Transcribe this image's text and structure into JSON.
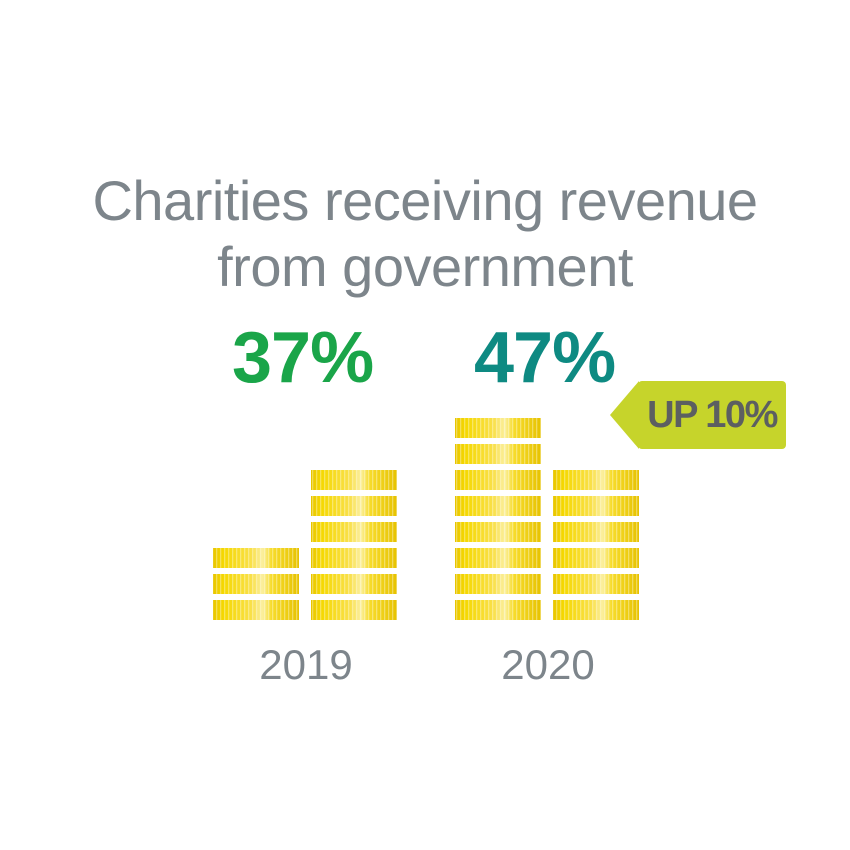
{
  "title": {
    "line1": "Charities receiving revenue",
    "line2": "from government"
  },
  "badge": {
    "label": "UP 10%"
  },
  "colors": {
    "title": "#7d858b",
    "pct_2019": "#1aa549",
    "pct_2020": "#0e8a82",
    "badge": "#c6d42b",
    "coin": "#f3d60a"
  },
  "chart_data": {
    "type": "bar",
    "title": "Charities receiving revenue from government",
    "categories": [
      "2019",
      "2020"
    ],
    "values": [
      37,
      47
    ],
    "value_labels": [
      "37%",
      "47%"
    ],
    "unit": "%",
    "annotation": "UP 10%",
    "coin_stacks": [
      {
        "year": "2019",
        "stacks": [
          3,
          6
        ]
      },
      {
        "year": "2020",
        "stacks": [
          8,
          6
        ]
      }
    ]
  }
}
